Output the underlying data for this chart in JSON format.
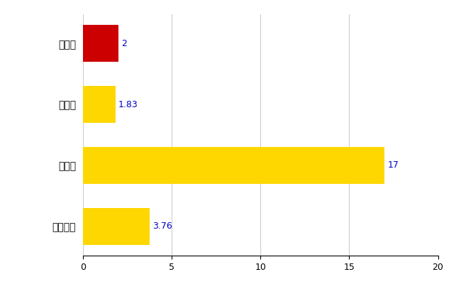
{
  "categories": [
    "全国平均",
    "県最大",
    "県平均",
    "阿南町"
  ],
  "values": [
    3.76,
    17,
    1.83,
    2
  ],
  "colors": [
    "#FFD700",
    "#FFD700",
    "#FFD700",
    "#CC0000"
  ],
  "labels": [
    "3.76",
    "17",
    "1.83",
    "2"
  ],
  "xlim": [
    0,
    20
  ],
  "xticks": [
    0,
    5,
    10,
    15,
    20
  ],
  "label_color": "#0000CD",
  "grid_color": "#CCCCCC",
  "bg_color": "#FFFFFF",
  "bar_height": 0.6,
  "figsize": [
    6.5,
    4.0
  ],
  "dpi": 100
}
